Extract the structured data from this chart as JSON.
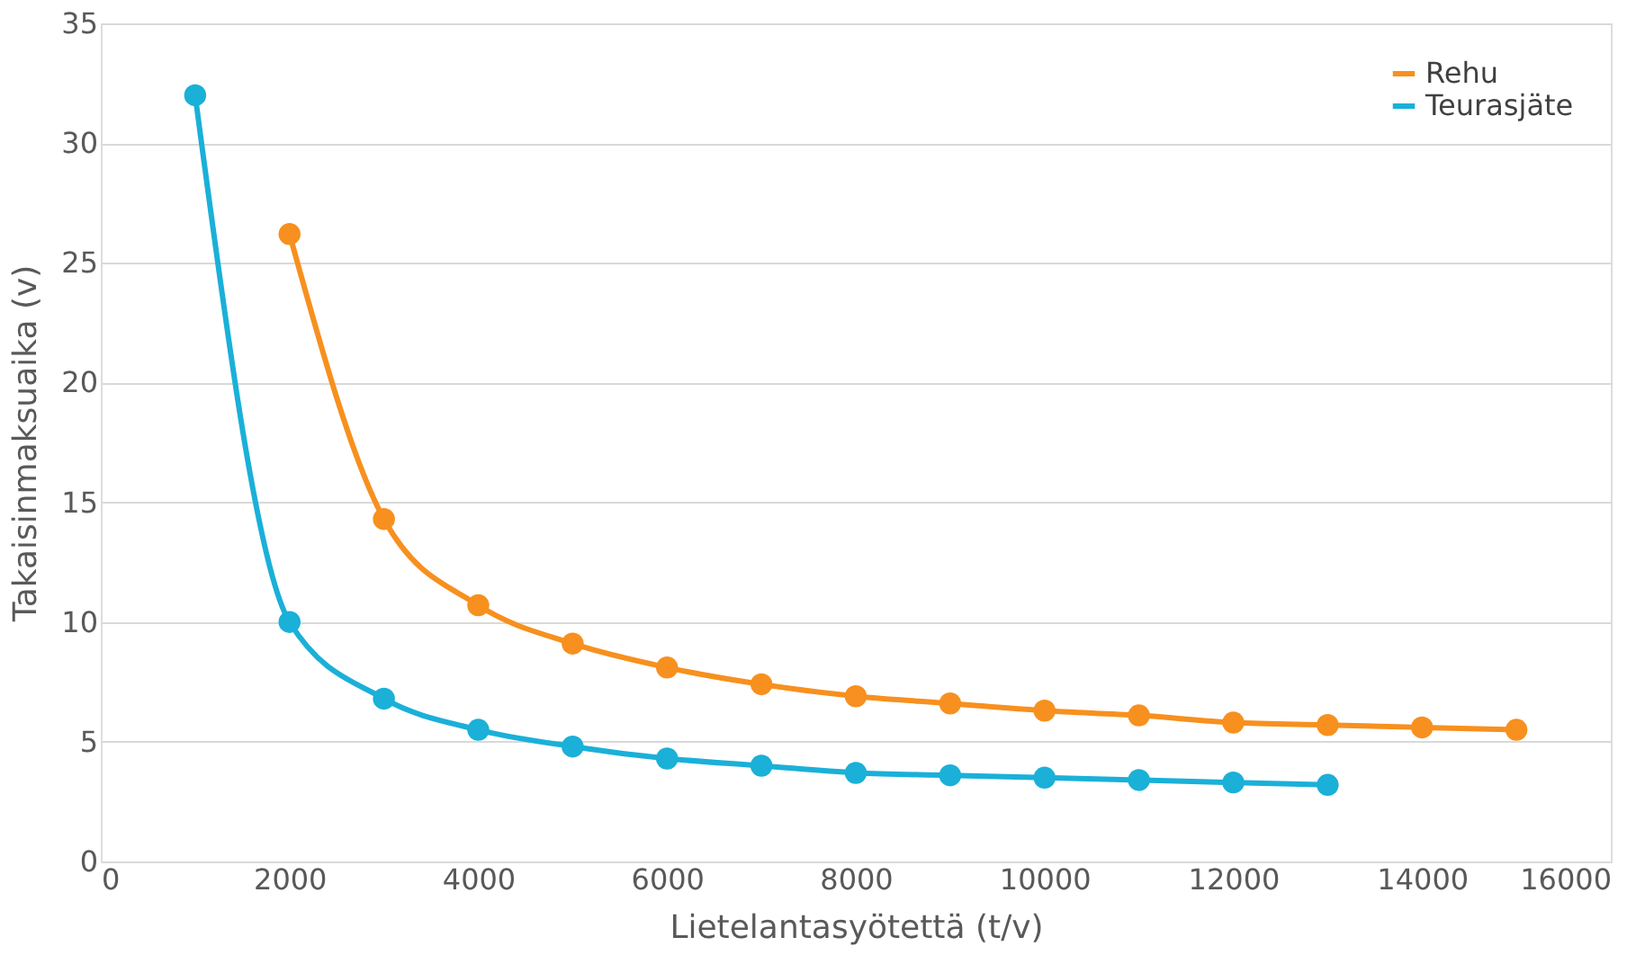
{
  "chart_data": {
    "type": "line",
    "xlabel": "Lietelantasyötettä (t/v)",
    "ylabel": "Takaisinmaksuaika (v)",
    "xlim": [
      0,
      16000
    ],
    "xticks": [
      0,
      2000,
      4000,
      6000,
      8000,
      10000,
      12000,
      14000,
      16000
    ],
    "ylim": [
      0,
      35
    ],
    "yticks": [
      0,
      5,
      10,
      15,
      20,
      25,
      30,
      35
    ],
    "grid": "y",
    "legend": "top right",
    "marker": "circle",
    "line_style": "solid",
    "series": [
      {
        "name": "Rehu",
        "color": "#f7901e",
        "x": [
          2000,
          3000,
          4000,
          5000,
          6000,
          7000,
          8000,
          9000,
          10000,
          11000,
          12000,
          13000,
          14000,
          15000
        ],
        "values": [
          26.2,
          14.3,
          10.7,
          9.1,
          8.1,
          7.4,
          6.9,
          6.6,
          6.3,
          6.1,
          5.8,
          5.7,
          5.6,
          5.5
        ]
      },
      {
        "name": "Teurasjäte",
        "color": "#1ab0d8",
        "x": [
          1000,
          2000,
          3000,
          4000,
          5000,
          6000,
          7000,
          8000,
          9000,
          10000,
          11000,
          12000,
          13000
        ],
        "values": [
          32.0,
          10.0,
          6.8,
          5.5,
          4.8,
          4.3,
          4.0,
          3.7,
          3.6,
          3.5,
          3.4,
          3.3,
          3.2
        ]
      }
    ]
  }
}
